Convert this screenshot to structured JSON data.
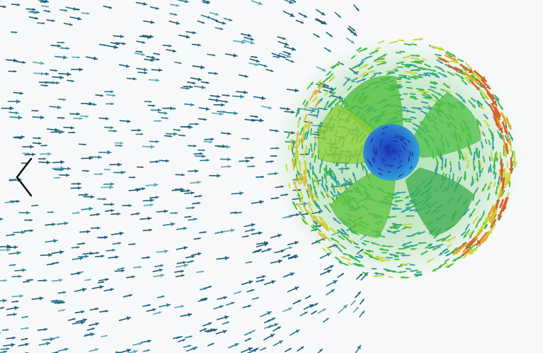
{
  "viewer": {
    "image_alt_semantic": "cfd-propeller-velocity-vector-field",
    "colors": {
      "background": "#f6f8f9",
      "slow_vectors": "#1f5f78",
      "mid_vectors": "#2a9fa0",
      "fast_vectors": "#3db84a",
      "faster_vectors": "#c6d92e",
      "fastest_vectors": "#d4632a",
      "hub_center": "#1f3fc0",
      "hub_edge": "#2fa3d6"
    }
  },
  "navigation": {
    "prev_icon": "chevron-left-icon"
  }
}
